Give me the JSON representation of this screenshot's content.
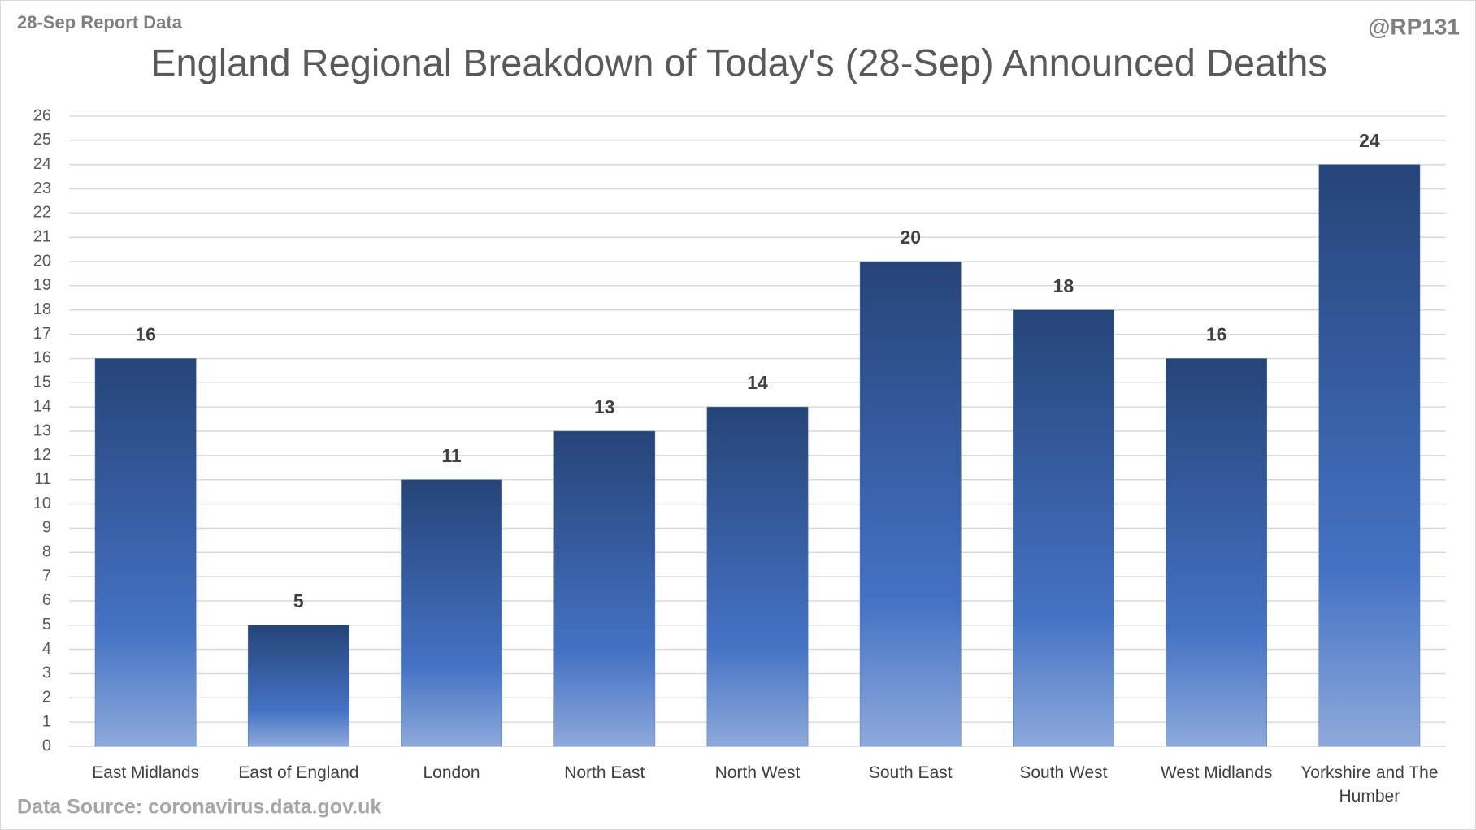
{
  "chart_data": {
    "type": "bar",
    "title": "England Regional Breakdown of Today's (28-Sep) Announced Deaths",
    "subtitle": "28-Sep Report Data",
    "annotations": [
      "@RP131",
      "Data Source: coronavirus.data.gov.uk"
    ],
    "categories": [
      "East Midlands",
      "East of England",
      "London",
      "North East",
      "North West",
      "South East",
      "South West",
      "West Midlands",
      "Yorkshire and The Humber"
    ],
    "values": [
      16,
      5,
      11,
      13,
      14,
      20,
      18,
      16,
      24
    ],
    "color": "#4472c4",
    "ylim": [
      0,
      26
    ],
    "yticks": [
      0,
      1,
      2,
      3,
      4,
      5,
      6,
      7,
      8,
      9,
      10,
      11,
      12,
      13,
      14,
      15,
      16,
      17,
      18,
      19,
      20,
      21,
      22,
      23,
      24,
      25,
      26
    ],
    "grid": true
  }
}
